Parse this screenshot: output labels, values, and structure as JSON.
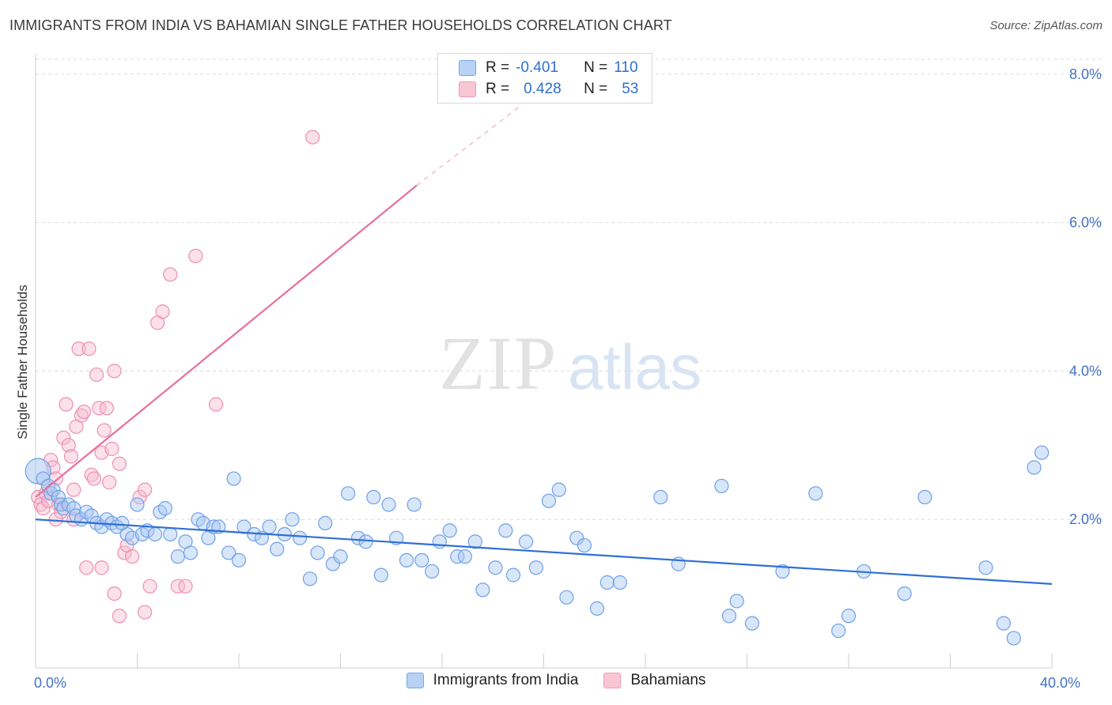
{
  "title": "IMMIGRANTS FROM INDIA VS BAHAMIAN SINGLE FATHER HOUSEHOLDS CORRELATION CHART",
  "source": "Source: ZipAtlas.com",
  "watermark": {
    "zip": "ZIP",
    "atlas": "atlas"
  },
  "legend": {
    "rows": [
      {
        "r_label": "R =",
        "r_value": "-0.401",
        "n_label": "N =",
        "n_value": "110"
      },
      {
        "r_label": "R =",
        "r_value": "0.428",
        "n_label": "N =",
        "n_value": "53"
      }
    ]
  },
  "colors": {
    "india": "#6fa0e8",
    "india_fill": "#a9c8f2",
    "india_line": "#2f6fd6",
    "bahamas": "#ee8fb0",
    "bahamas_fill": "#f7bcd0",
    "bahamas_line": "#e8709a",
    "tick_label": "#4472c4",
    "grid": "#dcdcdc"
  },
  "chart_data": {
    "type": "scatter",
    "ylabel": "Single Father Households",
    "xlabel": "",
    "xlim": [
      0,
      40
    ],
    "ylim": [
      0,
      8.2
    ],
    "x_ticks": [
      0,
      4,
      8,
      12,
      16,
      20,
      24,
      28,
      32,
      36,
      40
    ],
    "x_tick_labels": [
      {
        "value": 0,
        "label": "0.0%"
      },
      {
        "value": 40,
        "label": "40.0%"
      }
    ],
    "y_ticks": [
      {
        "value": 2,
        "label": "2.0%"
      },
      {
        "value": 4,
        "label": "4.0%"
      },
      {
        "value": 6,
        "label": "6.0%"
      },
      {
        "value": 8,
        "label": "8.0%"
      }
    ],
    "grid": "horizontal dashed",
    "legend_position": "top-center",
    "series": [
      {
        "name": "Immigrants from India",
        "trend": {
          "x0": 0,
          "y0": 2.0,
          "x1": 40,
          "y1": 1.13
        },
        "points": [
          [
            0.1,
            2.65
          ],
          [
            0.3,
            2.55
          ],
          [
            0.5,
            2.45
          ],
          [
            0.6,
            2.35
          ],
          [
            0.7,
            2.4
          ],
          [
            0.9,
            2.3
          ],
          [
            1.0,
            2.2
          ],
          [
            1.1,
            2.15
          ],
          [
            1.3,
            2.2
          ],
          [
            1.5,
            2.15
          ],
          [
            1.6,
            2.05
          ],
          [
            1.8,
            2.0
          ],
          [
            2.0,
            2.1
          ],
          [
            2.2,
            2.05
          ],
          [
            2.4,
            1.95
          ],
          [
            2.6,
            1.9
          ],
          [
            2.8,
            2.0
          ],
          [
            3.0,
            1.95
          ],
          [
            3.2,
            1.9
          ],
          [
            3.4,
            1.95
          ],
          [
            3.6,
            1.8
          ],
          [
            3.8,
            1.75
          ],
          [
            4.0,
            2.2
          ],
          [
            4.2,
            1.8
          ],
          [
            4.4,
            1.85
          ],
          [
            4.7,
            1.8
          ],
          [
            4.9,
            2.1
          ],
          [
            5.1,
            2.15
          ],
          [
            5.3,
            1.8
          ],
          [
            5.6,
            1.5
          ],
          [
            5.9,
            1.7
          ],
          [
            6.1,
            1.55
          ],
          [
            6.4,
            2.0
          ],
          [
            6.6,
            1.95
          ],
          [
            6.8,
            1.75
          ],
          [
            7.0,
            1.9
          ],
          [
            7.2,
            1.9
          ],
          [
            7.6,
            1.55
          ],
          [
            7.8,
            2.55
          ],
          [
            8.0,
            1.45
          ],
          [
            8.2,
            1.9
          ],
          [
            8.6,
            1.8
          ],
          [
            8.9,
            1.75
          ],
          [
            9.2,
            1.9
          ],
          [
            9.5,
            1.6
          ],
          [
            9.8,
            1.8
          ],
          [
            10.1,
            2.0
          ],
          [
            10.4,
            1.75
          ],
          [
            10.8,
            1.2
          ],
          [
            11.1,
            1.55
          ],
          [
            11.4,
            1.95
          ],
          [
            11.7,
            1.4
          ],
          [
            12.0,
            1.5
          ],
          [
            12.3,
            2.35
          ],
          [
            12.7,
            1.75
          ],
          [
            13.0,
            1.7
          ],
          [
            13.3,
            2.3
          ],
          [
            13.6,
            1.25
          ],
          [
            13.9,
            2.2
          ],
          [
            14.2,
            1.75
          ],
          [
            14.6,
            1.45
          ],
          [
            14.9,
            2.2
          ],
          [
            15.2,
            1.45
          ],
          [
            15.6,
            1.3
          ],
          [
            15.9,
            1.7
          ],
          [
            16.3,
            1.85
          ],
          [
            16.6,
            1.5
          ],
          [
            16.9,
            1.5
          ],
          [
            17.3,
            1.7
          ],
          [
            17.6,
            1.05
          ],
          [
            18.1,
            1.35
          ],
          [
            18.5,
            1.85
          ],
          [
            18.8,
            1.25
          ],
          [
            19.3,
            1.7
          ],
          [
            19.7,
            1.35
          ],
          [
            20.2,
            2.25
          ],
          [
            20.6,
            2.4
          ],
          [
            20.9,
            0.95
          ],
          [
            21.3,
            1.75
          ],
          [
            21.6,
            1.65
          ],
          [
            22.1,
            0.8
          ],
          [
            22.5,
            1.15
          ],
          [
            23.0,
            1.15
          ],
          [
            24.6,
            2.3
          ],
          [
            25.3,
            1.4
          ],
          [
            27.0,
            2.45
          ],
          [
            27.3,
            0.7
          ],
          [
            27.6,
            0.9
          ],
          [
            28.2,
            0.6
          ],
          [
            29.4,
            1.3
          ],
          [
            30.7,
            2.35
          ],
          [
            31.6,
            0.5
          ],
          [
            32.0,
            0.7
          ],
          [
            32.6,
            1.3
          ],
          [
            34.2,
            1.0
          ],
          [
            35.0,
            2.3
          ],
          [
            37.4,
            1.35
          ],
          [
            38.1,
            0.6
          ],
          [
            38.5,
            0.4
          ],
          [
            39.3,
            2.7
          ],
          [
            39.6,
            2.9
          ]
        ]
      },
      {
        "name": "Bahamians",
        "trend": {
          "x0": 0,
          "y0": 2.3,
          "x1": 15,
          "y1": 6.5,
          "dashed_to": {
            "x": 19,
            "y": 7.55
          }
        },
        "points": [
          [
            0.1,
            2.3
          ],
          [
            0.2,
            2.2
          ],
          [
            0.3,
            2.15
          ],
          [
            0.4,
            2.35
          ],
          [
            0.5,
            2.25
          ],
          [
            0.6,
            2.8
          ],
          [
            0.7,
            2.7
          ],
          [
            0.8,
            2.55
          ],
          [
            0.9,
            2.2
          ],
          [
            1.0,
            2.1
          ],
          [
            1.1,
            3.1
          ],
          [
            1.2,
            3.55
          ],
          [
            1.3,
            3.0
          ],
          [
            1.4,
            2.85
          ],
          [
            1.5,
            2.4
          ],
          [
            1.6,
            3.25
          ],
          [
            1.7,
            4.3
          ],
          [
            1.8,
            3.4
          ],
          [
            1.9,
            3.45
          ],
          [
            2.0,
            1.35
          ],
          [
            2.1,
            4.3
          ],
          [
            2.2,
            2.6
          ],
          [
            2.3,
            2.55
          ],
          [
            2.4,
            3.95
          ],
          [
            2.5,
            3.5
          ],
          [
            2.6,
            2.9
          ],
          [
            2.7,
            3.2
          ],
          [
            2.8,
            3.5
          ],
          [
            2.9,
            2.5
          ],
          [
            3.0,
            2.95
          ],
          [
            3.1,
            4.0
          ],
          [
            3.3,
            2.75
          ],
          [
            3.5,
            1.55
          ],
          [
            3.6,
            1.65
          ],
          [
            3.8,
            1.5
          ],
          [
            4.1,
            2.3
          ],
          [
            4.3,
            2.4
          ],
          [
            4.5,
            1.1
          ],
          [
            4.8,
            4.65
          ],
          [
            5.0,
            4.8
          ],
          [
            5.3,
            5.3
          ],
          [
            5.6,
            1.1
          ],
          [
            5.9,
            1.1
          ],
          [
            6.3,
            5.55
          ],
          [
            7.1,
            3.55
          ],
          [
            10.9,
            7.15
          ],
          [
            1.5,
            2.0
          ],
          [
            2.6,
            1.35
          ],
          [
            3.1,
            1.0
          ],
          [
            3.3,
            0.7
          ],
          [
            4.3,
            0.75
          ],
          [
            1.0,
            2.2
          ],
          [
            0.8,
            2.0
          ]
        ]
      }
    ]
  },
  "bottom_legend": [
    {
      "label": "Immigrants from India"
    },
    {
      "label": "Bahamians"
    }
  ]
}
